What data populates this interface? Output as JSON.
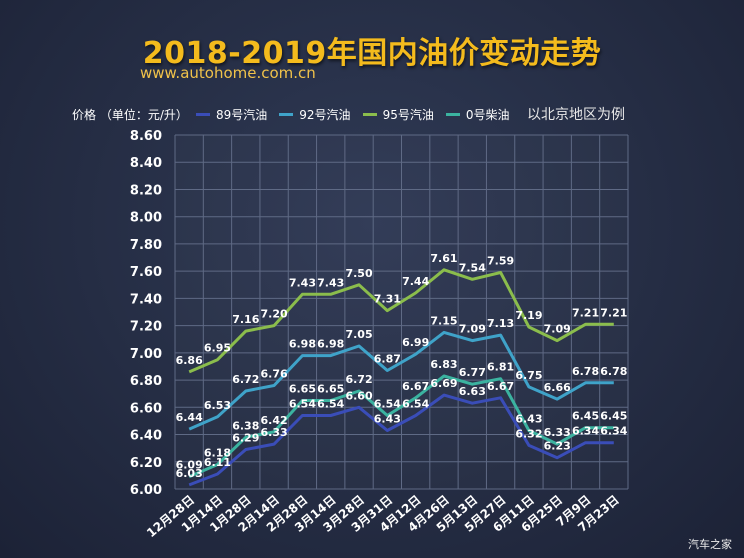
{
  "title": "2018-2019年国内油价变动走势",
  "source": "www.autohome.com.cn",
  "unit_label": "价格 （单位：元/升）",
  "note": "以北京地区为例",
  "watermark": "汽车之家",
  "chart_data": {
    "type": "line",
    "ylim": [
      6.0,
      8.6
    ],
    "yticks": [
      "6.00",
      "6.20",
      "6.40",
      "6.60",
      "6.80",
      "7.00",
      "7.20",
      "7.40",
      "7.60",
      "7.80",
      "8.00",
      "8.20",
      "8.40",
      "8.60"
    ],
    "categories": [
      "12月28日",
      "1月14日",
      "1月28日",
      "2月14日",
      "2月28日",
      "3月14日",
      "3月28日",
      "3月31日",
      "4月12日",
      "4月26日",
      "5月13日",
      "5月27日",
      "6月11日",
      "6月25日",
      "7月9日",
      "7月23日"
    ],
    "grid": true,
    "legend_position": "top",
    "series": [
      {
        "name": "89号汽油",
        "color": "#3a4db8",
        "values": [
          6.03,
          6.11,
          6.29,
          6.33,
          6.54,
          6.54,
          6.6,
          6.43,
          6.54,
          6.69,
          6.63,
          6.67,
          6.32,
          6.23,
          6.34,
          6.34
        ],
        "labels": {
          "0": "6.03",
          "1": "6.11",
          "2": "6.29",
          "3": "6.33",
          "13": "6.23",
          "14": "6.34",
          "15": "6.34"
        }
      },
      {
        "name": "92号汽油",
        "color": "#3fa3c9",
        "values": [
          6.44,
          6.53,
          6.72,
          6.76,
          6.98,
          6.98,
          7.05,
          6.87,
          6.99,
          7.15,
          7.09,
          7.13,
          6.75,
          6.66,
          6.78,
          6.78
        ],
        "labels": {
          "0": "6.44",
          "1": "6.53",
          "2": "6.72",
          "3": "6.76",
          "4": "6.98",
          "5": "6.98",
          "6": "7.05",
          "7": "6.87",
          "8": "6.99",
          "9": "7.15",
          "10": "7.09",
          "11": "7.13",
          "12": "6.75",
          "13": "6.66",
          "14": "6.78",
          "15": "6.78"
        }
      },
      {
        "name": "95号汽油",
        "color": "#8bbd4c",
        "values": [
          6.86,
          6.95,
          7.16,
          7.2,
          7.43,
          7.43,
          7.5,
          7.31,
          7.44,
          7.61,
          7.54,
          7.59,
          7.19,
          7.09,
          7.21,
          7.21
        ],
        "labels": {
          "0": "6.86",
          "1": "6.95",
          "2": "7.16",
          "3": "7.20",
          "4": "7.43",
          "5": "7.43",
          "6": "7.50",
          "7": "7.31",
          "8": "7.44",
          "9": "7.61",
          "10": "7.54",
          "11": "7.59",
          "12": "7.19",
          "13": "7.09",
          "14": "7.21",
          "15": "7.21"
        }
      },
      {
        "name": "0号柴油",
        "color": "#3bb3a0",
        "values": [
          6.09,
          6.18,
          6.38,
          6.42,
          6.65,
          6.65,
          6.72,
          6.54,
          6.67,
          6.83,
          6.77,
          6.81,
          6.43,
          6.33,
          6.45,
          6.45
        ],
        "labels": {
          "0": "6.09",
          "1": "6.18",
          "2": "6.38",
          "3": "6.42",
          "4": "6.65",
          "5": "6.65",
          "6": "6.72",
          "7": "6.54",
          "8": "6.67",
          "9": "6.83",
          "10": "6.77",
          "11": "6.81",
          "12": "6.43",
          "13": "6.33",
          "14": "6.45",
          "15": "6.45"
        }
      }
    ],
    "extra_labels": [
      {
        "series": 0,
        "index": 4,
        "text": "6.54"
      },
      {
        "series": 0,
        "index": 5,
        "text": "6.54"
      },
      {
        "series": 0,
        "index": 6,
        "text": "6.60"
      },
      {
        "series": 0,
        "index": 7,
        "text": "6.43"
      },
      {
        "series": 0,
        "index": 8,
        "text": "6.54"
      },
      {
        "series": 0,
        "index": 9,
        "text": "6.69"
      },
      {
        "series": 0,
        "index": 10,
        "text": "6.63"
      },
      {
        "series": 0,
        "index": 11,
        "text": "6.67"
      },
      {
        "series": 0,
        "index": 12,
        "text": "6.32"
      }
    ]
  }
}
